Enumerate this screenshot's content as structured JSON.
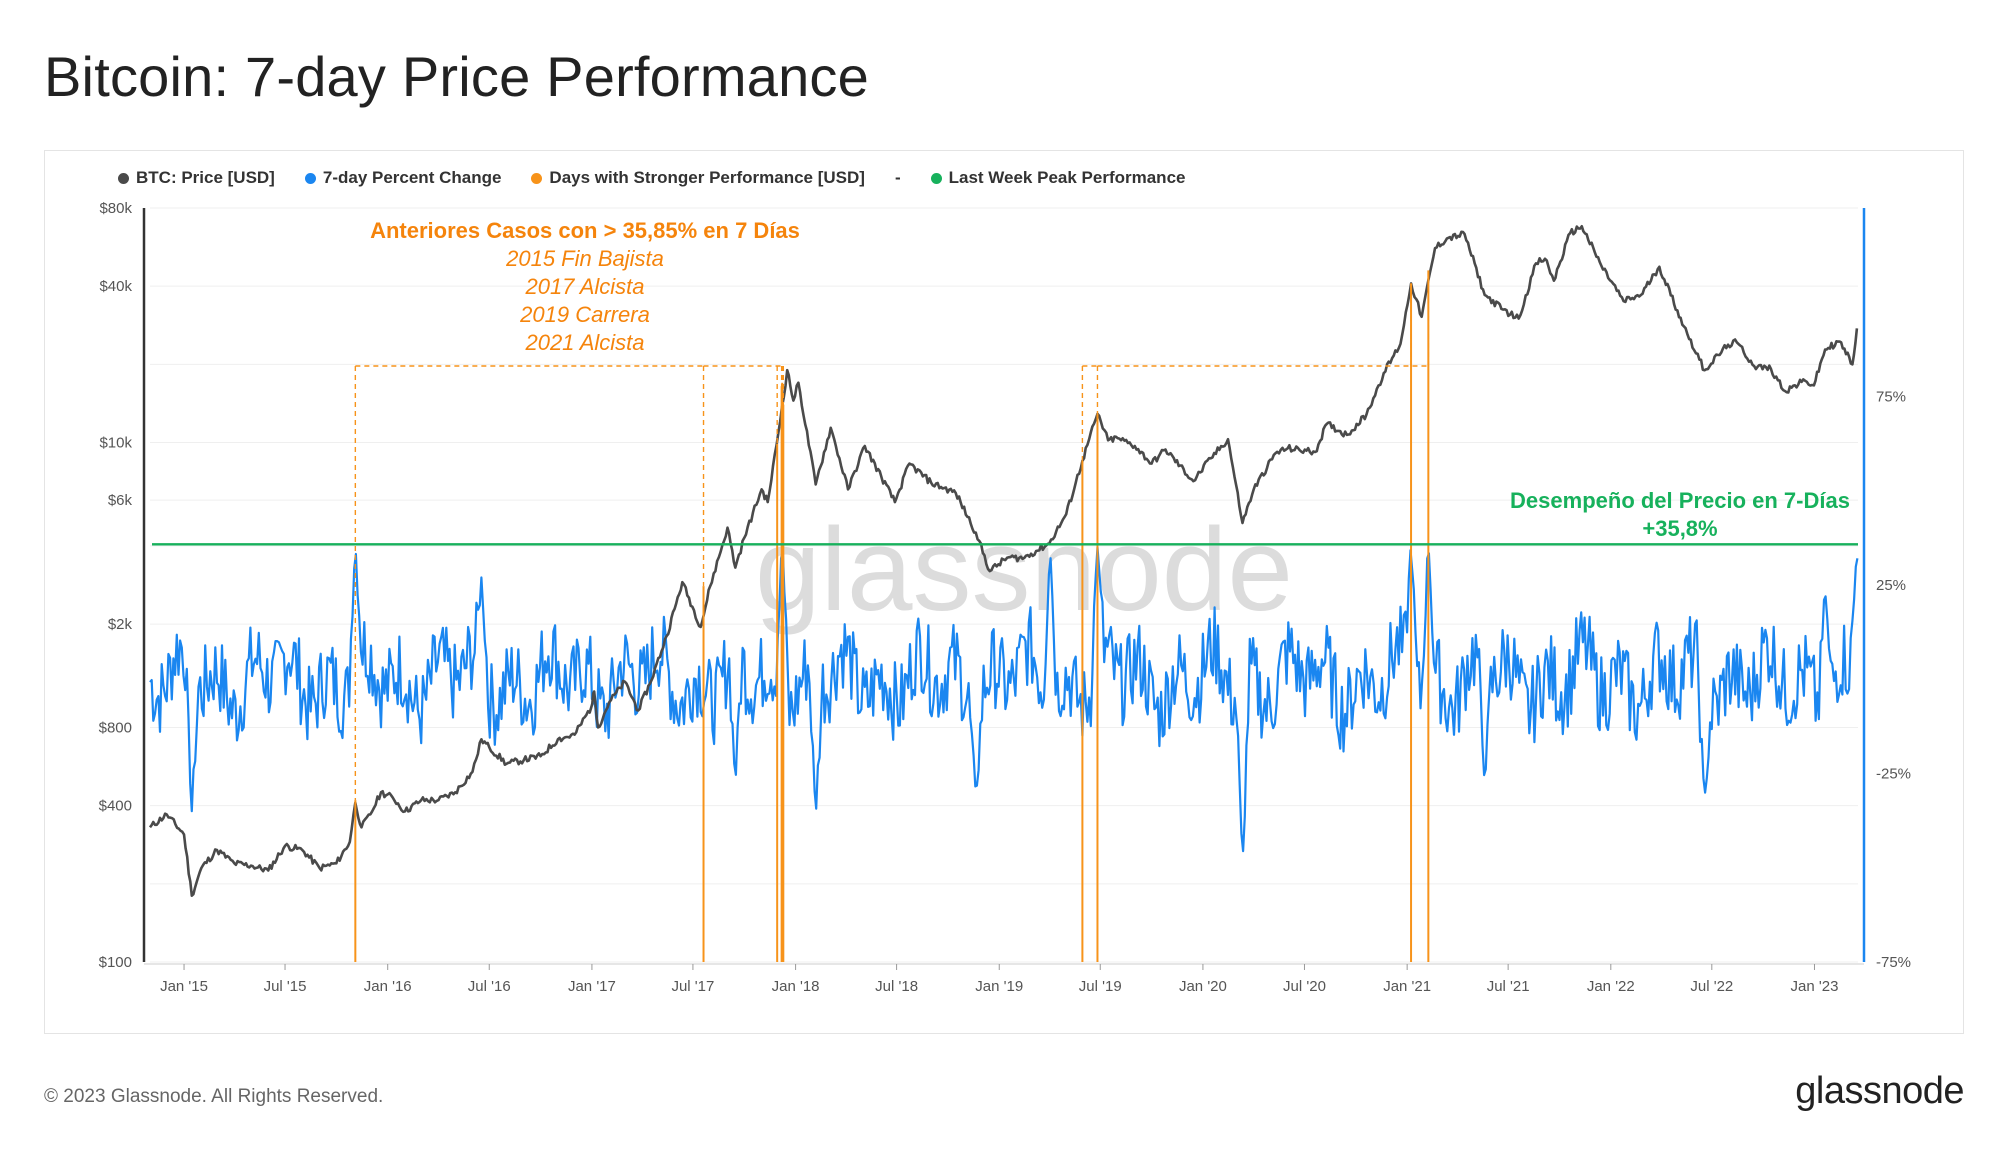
{
  "title": "Bitcoin: 7-day Price Performance",
  "footer": {
    "copyright": "© 2023 Glassnode. All Rights Reserved.",
    "logo": "glassnode"
  },
  "watermark": "glassnode",
  "legend": [
    {
      "label": "BTC: Price [USD]",
      "color": "#4a4a4a"
    },
    {
      "label": "7-day Percent Change",
      "color": "#1a86f0"
    },
    {
      "label": "Days with Stronger Performance [USD]",
      "color": "#f7931a"
    },
    {
      "label": "-",
      "color": ""
    },
    {
      "label": "Last Week Peak Performance",
      "color": "#17b15c"
    }
  ],
  "annotations": {
    "history_title": "Anteriores Casos con > 35,85% en 7 Días",
    "history_lines": [
      "2015 Fin Bajista",
      "2017 Alcista",
      "2019 Carrera",
      "2021 Alcista"
    ],
    "peak_title": "Desempeño del Precio en 7-Días",
    "peak_value": "+35,8%"
  },
  "chart_data": {
    "type": "line",
    "x_tick_labels": [
      "Jan '15",
      "Jul '15",
      "Jan '16",
      "Jul '16",
      "Jan '17",
      "Jul '17",
      "Jan '18",
      "Jul '18",
      "Jan '19",
      "Jul '19",
      "Jan '20",
      "Jul '20",
      "Jan '21",
      "Jul '21",
      "Jan '22",
      "Jul '22",
      "Jan '23"
    ],
    "x_range": [
      "2014-11-01",
      "2023-03-20"
    ],
    "y_left": {
      "label": "",
      "scale": "log",
      "range": [
        100,
        80000
      ],
      "ticks": [
        100,
        400,
        800,
        2000,
        6000,
        10000,
        40000,
        80000
      ],
      "tick_labels": [
        "$100",
        "$400",
        "$800",
        "$2k",
        "$6k",
        "$10k",
        "$40k",
        "$80k"
      ]
    },
    "y_right": {
      "label": "",
      "scale": "linear",
      "range": [
        -0.75,
        1.25
      ],
      "ticks": [
        -0.75,
        -0.25,
        0.25,
        0.75
      ],
      "tick_labels": [
        "-75%",
        "-25%",
        "25%",
        "75%"
      ]
    },
    "series": [
      {
        "name": "BTC: Price [USD]",
        "axis": "left",
        "color": "#4a4a4a",
        "points": [
          [
            "2014-11-01",
            330
          ],
          [
            "2014-12-01",
            370
          ],
          [
            "2015-01-01",
            310
          ],
          [
            "2015-01-15",
            180
          ],
          [
            "2015-02-01",
            230
          ],
          [
            "2015-03-01",
            270
          ],
          [
            "2015-04-01",
            240
          ],
          [
            "2015-05-01",
            235
          ],
          [
            "2015-06-01",
            225
          ],
          [
            "2015-07-01",
            280
          ],
          [
            "2015-08-01",
            270
          ],
          [
            "2015-09-01",
            230
          ],
          [
            "2015-10-01",
            240
          ],
          [
            "2015-10-25",
            290
          ],
          [
            "2015-11-04",
            410
          ],
          [
            "2015-11-15",
            330
          ],
          [
            "2015-12-01",
            370
          ],
          [
            "2015-12-20",
            450
          ],
          [
            "2016-01-10",
            430
          ],
          [
            "2016-02-01",
            380
          ],
          [
            "2016-03-01",
            420
          ],
          [
            "2016-04-01",
            420
          ],
          [
            "2016-05-01",
            450
          ],
          [
            "2016-06-01",
            540
          ],
          [
            "2016-06-17",
            720
          ],
          [
            "2016-07-01",
            670
          ],
          [
            "2016-08-01",
            580
          ],
          [
            "2016-09-01",
            600
          ],
          [
            "2016-10-01",
            620
          ],
          [
            "2016-11-01",
            720
          ],
          [
            "2016-12-01",
            750
          ],
          [
            "2016-12-31",
            960
          ],
          [
            "2017-01-05",
            1100
          ],
          [
            "2017-01-12",
            800
          ],
          [
            "2017-02-01",
            1000
          ],
          [
            "2017-03-01",
            1200
          ],
          [
            "2017-03-25",
            930
          ],
          [
            "2017-04-15",
            1180
          ],
          [
            "2017-05-15",
            1800
          ],
          [
            "2017-06-01",
            2400
          ],
          [
            "2017-06-12",
            2900
          ],
          [
            "2017-07-15",
            1950
          ],
          [
            "2017-08-01",
            2800
          ],
          [
            "2017-09-01",
            4700
          ],
          [
            "2017-09-15",
            3300
          ],
          [
            "2017-10-01",
            4300
          ],
          [
            "2017-11-01",
            6600
          ],
          [
            "2017-11-12",
            5900
          ],
          [
            "2017-11-28",
            9800
          ],
          [
            "2017-12-17",
            19000
          ],
          [
            "2017-12-28",
            14500
          ],
          [
            "2018-01-06",
            17000
          ],
          [
            "2018-02-06",
            6900
          ],
          [
            "2018-03-05",
            11400
          ],
          [
            "2018-04-05",
            6600
          ],
          [
            "2018-05-05",
            9700
          ],
          [
            "2018-06-28",
            5900
          ],
          [
            "2018-07-24",
            8300
          ],
          [
            "2018-09-01",
            7000
          ],
          [
            "2018-10-15",
            6400
          ],
          [
            "2018-11-20",
            4500
          ],
          [
            "2018-12-15",
            3200
          ],
          [
            "2019-01-15",
            3600
          ],
          [
            "2019-02-15",
            3600
          ],
          [
            "2019-04-01",
            4100
          ],
          [
            "2019-05-01",
            5300
          ],
          [
            "2019-05-30",
            8500
          ],
          [
            "2019-06-26",
            12900
          ],
          [
            "2019-07-15",
            10200
          ],
          [
            "2019-08-01",
            10400
          ],
          [
            "2019-09-01",
            9700
          ],
          [
            "2019-10-01",
            8300
          ],
          [
            "2019-10-26",
            9400
          ],
          [
            "2019-12-15",
            7100
          ],
          [
            "2020-01-15",
            8700
          ],
          [
            "2020-02-15",
            10300
          ],
          [
            "2020-03-12",
            4900
          ],
          [
            "2020-04-01",
            6600
          ],
          [
            "2020-05-10",
            9100
          ],
          [
            "2020-06-01",
            9500
          ],
          [
            "2020-07-20",
            9200
          ],
          [
            "2020-08-10",
            11800
          ],
          [
            "2020-09-15",
            10700
          ],
          [
            "2020-10-20",
            12800
          ],
          [
            "2020-11-20",
            18500
          ],
          [
            "2020-12-20",
            24000
          ],
          [
            "2021-01-08",
            41000
          ],
          [
            "2021-01-27",
            30500
          ],
          [
            "2021-02-20",
            56000
          ],
          [
            "2021-03-13",
            61000
          ],
          [
            "2021-04-14",
            63500
          ],
          [
            "2021-05-20",
            37000
          ],
          [
            "2021-06-22",
            32500
          ],
          [
            "2021-07-20",
            30000
          ],
          [
            "2021-08-20",
            49000
          ],
          [
            "2021-09-05",
            51000
          ],
          [
            "2021-09-21",
            42000
          ],
          [
            "2021-10-20",
            64000
          ],
          [
            "2021-11-10",
            68000
          ],
          [
            "2021-12-15",
            48000
          ],
          [
            "2022-01-24",
            35000
          ],
          [
            "2022-02-24",
            37000
          ],
          [
            "2022-03-29",
            47500
          ],
          [
            "2022-05-12",
            28000
          ],
          [
            "2022-06-18",
            19000
          ],
          [
            "2022-07-30",
            23800
          ],
          [
            "2022-08-15",
            24300
          ],
          [
            "2022-09-15",
            19700
          ],
          [
            "2022-10-15",
            19200
          ],
          [
            "2022-11-09",
            15800
          ],
          [
            "2022-12-15",
            17300
          ],
          [
            "2022-12-31",
            16600
          ],
          [
            "2023-01-20",
            22800
          ],
          [
            "2023-02-15",
            24500
          ],
          [
            "2023-03-10",
            20000
          ],
          [
            "2023-03-18",
            27500
          ]
        ]
      },
      {
        "name": "7-day Percent Change",
        "axis": "right",
        "color": "#1a86f0",
        "samples_per_week": 1,
        "baseline": 0.0,
        "notable_extremes": [
          [
            "2015-01-15",
            -0.35
          ],
          [
            "2015-11-04",
            0.36
          ],
          [
            "2016-06-17",
            0.27
          ],
          [
            "2017-09-15",
            -0.28
          ],
          [
            "2017-12-08",
            0.38
          ],
          [
            "2018-02-06",
            -0.37
          ],
          [
            "2018-11-20",
            -0.31
          ],
          [
            "2019-04-02",
            0.36
          ],
          [
            "2019-06-26",
            0.35
          ],
          [
            "2020-03-12",
            -0.5
          ],
          [
            "2021-01-08",
            0.37
          ],
          [
            "2021-02-08",
            0.37
          ],
          [
            "2021-05-20",
            -0.27
          ],
          [
            "2022-06-18",
            -0.33
          ],
          [
            "2023-01-20",
            0.25
          ],
          [
            "2023-03-18",
            0.358
          ]
        ]
      },
      {
        "name": "Days with Stronger Performance [USD]",
        "axis": "left",
        "color": "#f7931a",
        "dates": [
          "2015-11-04",
          "2017-07-20",
          "2017-11-29",
          "2017-12-07",
          "2017-12-08",
          "2017-12-10",
          "2019-05-30",
          "2019-06-26",
          "2021-01-08",
          "2021-02-08"
        ],
        "values": [
          420,
          2800,
          9900,
          16500,
          17000,
          14000,
          8500,
          12900,
          41000,
          46000
        ]
      },
      {
        "name": "Last Week Peak Performance",
        "axis": "right",
        "color": "#17b15c",
        "value": 0.358
      }
    ]
  }
}
